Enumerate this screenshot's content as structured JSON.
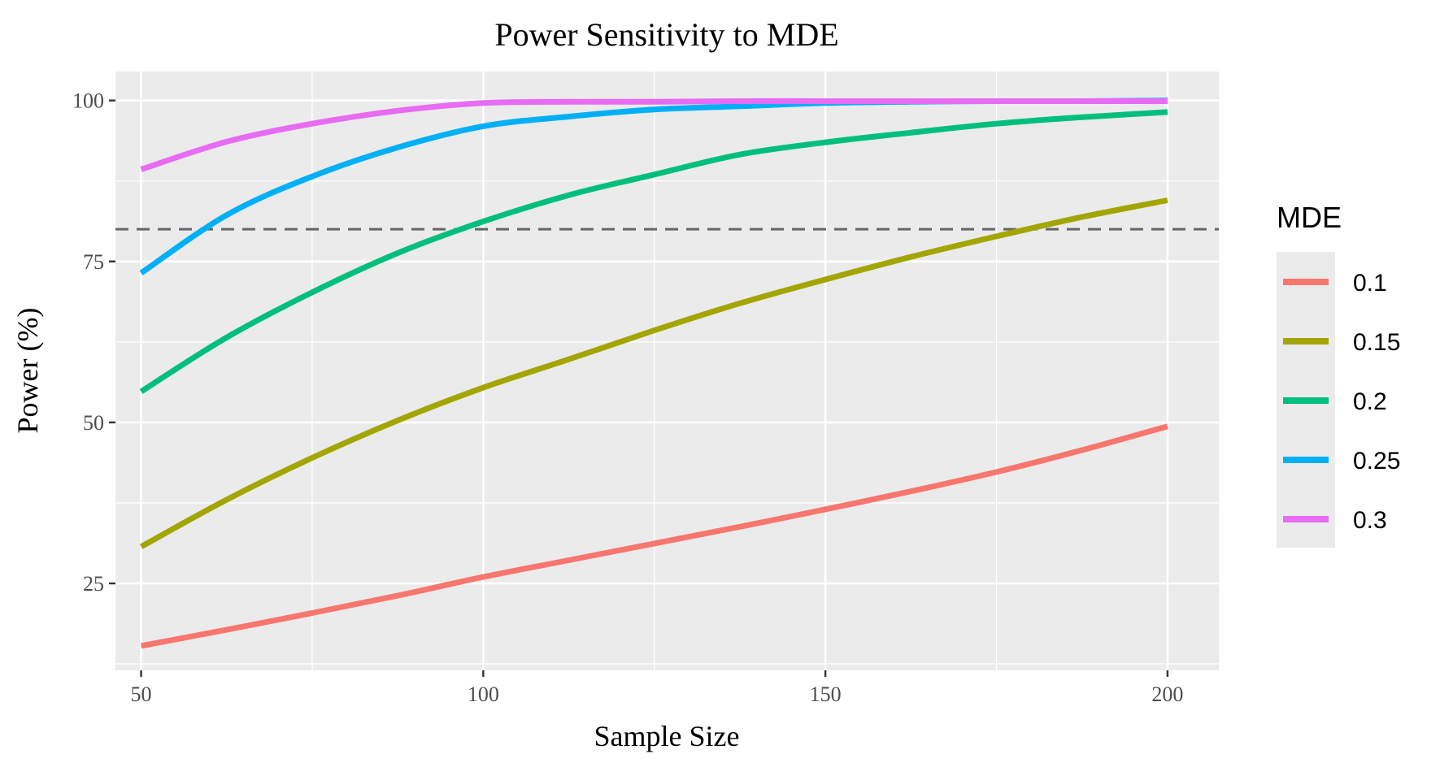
{
  "chart_data": {
    "type": "line",
    "title": "Power Sensitivity to MDE",
    "xlabel": "Sample Size",
    "ylabel": "Power (%)",
    "xlim": [
      46.25,
      207.5
    ],
    "ylim": [
      11.5,
      104.5
    ],
    "x_ticks": [
      50,
      100,
      150,
      200
    ],
    "x_tick_labels": [
      "50",
      "100",
      "150",
      "200"
    ],
    "x_minor_ticks": [
      75,
      125,
      175
    ],
    "y_ticks": [
      25,
      50,
      75,
      100
    ],
    "y_tick_labels": [
      "25",
      "50",
      "75",
      "100"
    ],
    "y_minor_ticks": [
      12.5,
      37.5,
      62.5,
      87.5
    ],
    "grid": true,
    "reference_line": {
      "y": 80,
      "style": "dashed",
      "color": "#666666"
    },
    "legend": {
      "title": "MDE",
      "position": "right"
    },
    "x": [
      50,
      62.5,
      75,
      87.5,
      100,
      112.5,
      125,
      137.5,
      150,
      162.5,
      175,
      187.5,
      200
    ],
    "series": [
      {
        "name": "0.1",
        "color": "#F8766D",
        "values": [
          15.3,
          17.8,
          20.4,
          23.1,
          26.0,
          28.6,
          31.2,
          33.8,
          36.5,
          39.3,
          42.3,
          45.7,
          49.4
        ]
      },
      {
        "name": "0.15",
        "color": "#A3A500",
        "values": [
          30.7,
          38.0,
          44.5,
          50.3,
          55.4,
          59.8,
          64.3,
          68.5,
          72.2,
          75.7,
          78.9,
          81.9,
          84.5
        ]
      },
      {
        "name": "0.2",
        "color": "#00BF7D",
        "values": [
          54.8,
          63.2,
          70.2,
          76.3,
          81.2,
          85.3,
          88.5,
          91.6,
          93.5,
          95.0,
          96.4,
          97.4,
          98.2
        ]
      },
      {
        "name": "0.25",
        "color": "#00B0F6",
        "values": [
          73.2,
          82.2,
          88.2,
          92.7,
          96.0,
          97.5,
          98.6,
          99.1,
          99.6,
          99.8,
          99.9,
          99.9,
          100.0
        ]
      },
      {
        "name": "0.3",
        "color": "#E76BF3",
        "values": [
          89.3,
          93.6,
          96.4,
          98.4,
          99.6,
          99.8,
          99.8,
          99.9,
          99.9,
          99.9,
          99.9,
          99.9,
          99.9
        ]
      }
    ]
  }
}
